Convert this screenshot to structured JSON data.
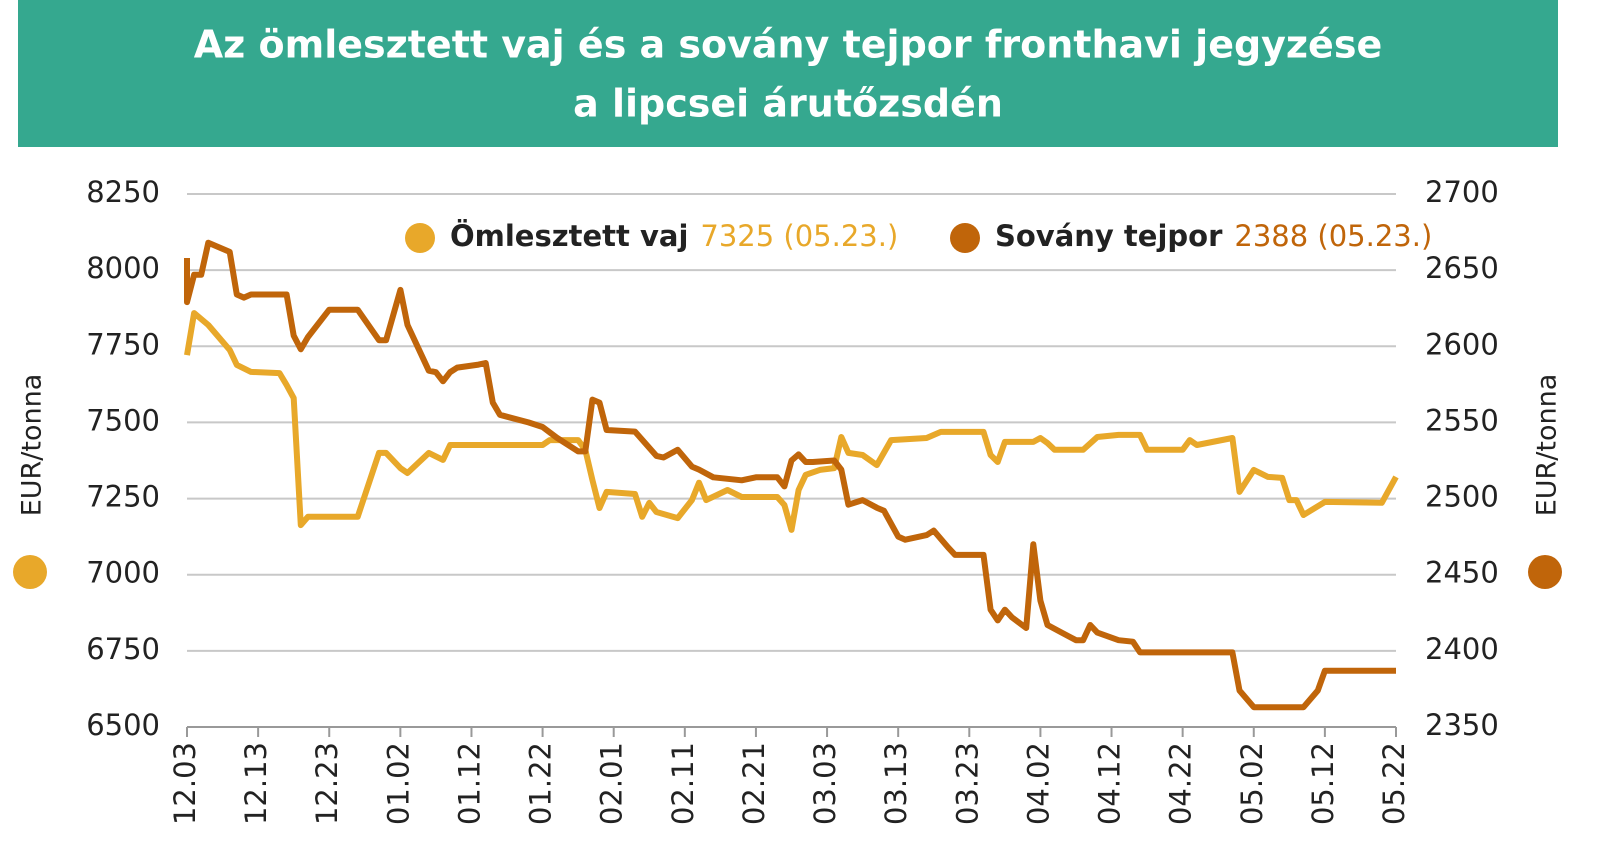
{
  "chart_data": {
    "type": "line",
    "title": [
      "Az ömlesztett vaj és a sovány tejpor fronthavi jegyzése",
      "a lipcsei árutőzsdén"
    ],
    "ylabel": "EUR/tonna",
    "y2label": "EUR/tonna",
    "xlim": [
      "12.03",
      "05.22"
    ],
    "xticks": [
      "12.03",
      "12.13",
      "12.23",
      "01.02",
      "01.12",
      "01.22",
      "02.01",
      "02.11",
      "02.21",
      "03.03",
      "03.13",
      "03.23",
      "04.02",
      "04.12",
      "04.22",
      "05.02",
      "05.12",
      "05.22"
    ],
    "ylim": [
      6500,
      8250
    ],
    "yticks": [
      6500,
      6750,
      7000,
      7250,
      7500,
      7750,
      8000,
      8250
    ],
    "y2lim": [
      2350,
      2700
    ],
    "y2ticks": [
      2350,
      2400,
      2450,
      2500,
      2550,
      2600,
      2650,
      2700
    ],
    "grid": true,
    "series": [
      {
        "name": "Ömlesztett vaj",
        "annotation": "7325 (05.23.)",
        "color": "#e8a82a",
        "x": [
          "12.03",
          "12.04",
          "12.06",
          "12.09",
          "12.10",
          "12.12",
          "12.16",
          "12.17",
          "12.18",
          "12.19",
          "12.20",
          "12.27",
          "12.30",
          "12.31",
          "01.02",
          "01.03",
          "01.06",
          "01.08",
          "01.09",
          "01.22",
          "01.23",
          "01.27",
          "01.28",
          "01.29",
          "01.30",
          "01.31",
          "02.04",
          "02.05",
          "02.06",
          "02.07",
          "02.10",
          "02.12",
          "02.13",
          "02.14",
          "02.17",
          "02.19",
          "02.24",
          "02.25",
          "02.26",
          "02.27",
          "02.28",
          "03.02",
          "03.04",
          "03.05",
          "03.06",
          "03.08",
          "03.10",
          "03.12",
          "03.17",
          "03.19",
          "03.25",
          "03.26",
          "03.27",
          "03.28",
          "04.01",
          "04.02",
          "04.03",
          "04.04",
          "04.08",
          "04.10",
          "04.13",
          "04.16",
          "04.17",
          "04.22",
          "04.23",
          "04.24",
          "04.29",
          "04.30",
          "05.02",
          "05.04",
          "05.06",
          "05.07",
          "05.08",
          "05.09",
          "05.12",
          "05.20",
          "05.22"
        ],
        "values": [
          7721,
          7859,
          7820,
          7738,
          7689,
          7666,
          7662,
          7623,
          7580,
          7163,
          7190,
          7190,
          7400,
          7400,
          7350,
          7334,
          7400,
          7377,
          7426,
          7426,
          7442,
          7442,
          7410,
          7311,
          7219,
          7272,
          7265,
          7190,
          7236,
          7206,
          7186,
          7245,
          7302,
          7245,
          7278,
          7255,
          7255,
          7229,
          7147,
          7278,
          7328,
          7344,
          7350,
          7452,
          7400,
          7393,
          7360,
          7442,
          7449,
          7469,
          7469,
          7393,
          7370,
          7436,
          7436,
          7449,
          7432,
          7410,
          7410,
          7452,
          7459,
          7459,
          7410,
          7410,
          7442,
          7426,
          7449,
          7272,
          7344,
          7321,
          7318,
          7245,
          7245,
          7196,
          7239,
          7236,
          7321
        ]
      },
      {
        "name": "Sovány tejpor",
        "annotation": "2388 (05.23.)",
        "color": "#c0650a",
        "axis": "y2",
        "x": [
          "12.03",
          "12.03",
          "12.04",
          "12.05",
          "12.06",
          "12.09",
          "12.10",
          "12.11",
          "12.12",
          "12.17",
          "12.18",
          "12.19",
          "12.20",
          "12.23",
          "12.27",
          "12.30",
          "12.31",
          "01.02",
          "01.03",
          "01.06",
          "01.07",
          "01.08",
          "01.09",
          "01.10",
          "01.13",
          "01.14",
          "01.15",
          "01.16",
          "01.20",
          "01.22",
          "01.24",
          "01.27",
          "01.28",
          "01.29",
          "01.30",
          "01.31",
          "02.04",
          "02.07",
          "02.08",
          "02.10",
          "02.12",
          "02.13",
          "02.15",
          "02.19",
          "02.21",
          "02.24",
          "02.25",
          "02.26",
          "02.27",
          "02.28",
          "03.01",
          "03.04",
          "03.05",
          "03.06",
          "03.08",
          "03.10",
          "03.11",
          "03.13",
          "03.14",
          "03.17",
          "03.18",
          "03.20",
          "03.21",
          "03.25",
          "03.26",
          "03.27",
          "03.28",
          "03.29",
          "03.31",
          "04.01",
          "04.02",
          "04.03",
          "04.05",
          "04.07",
          "04.08",
          "04.09",
          "04.10",
          "04.13",
          "04.15",
          "04.16",
          "04.29",
          "04.30",
          "05.02",
          "05.09",
          "05.11",
          "05.12",
          "05.22"
        ],
        "values": [
          2658,
          2629,
          2647,
          2647,
          2668,
          2662,
          2634,
          2632,
          2634,
          2634,
          2607,
          2598,
          2606,
          2624,
          2624,
          2604,
          2604,
          2637,
          2614,
          2584,
          2583,
          2577,
          2583,
          2586,
          2588,
          2589,
          2563,
          2555,
          2550,
          2547,
          2540,
          2531,
          2531,
          2565,
          2563,
          2545,
          2544,
          2528,
          2527,
          2532,
          2521,
          2519,
          2514,
          2512,
          2514,
          2514,
          2508,
          2525,
          2529,
          2524,
          2524,
          2525,
          2519,
          2496,
          2499,
          2494,
          2492,
          2475,
          2473,
          2476,
          2479,
          2468,
          2463,
          2463,
          2427,
          2420,
          2427,
          2422,
          2415,
          2470,
          2433,
          2417,
          2412,
          2407,
          2407,
          2417,
          2412,
          2407,
          2406,
          2399,
          2399,
          2374,
          2363,
          2363,
          2374,
          2387,
          2387
        ]
      }
    ]
  }
}
